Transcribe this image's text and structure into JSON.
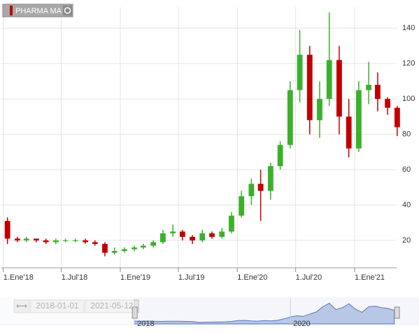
{
  "chart_data": {
    "type": "candlestick",
    "legend": "PHARMA MA",
    "up_color": "#3cb02c",
    "down_color": "#c00000",
    "x": [
      "2018-01-01",
      "2018-02-01",
      "2018-03-01",
      "2018-04-01",
      "2018-05-01",
      "2018-06-01",
      "2018-07-01",
      "2018-08-01",
      "2018-09-01",
      "2018-10-01",
      "2018-11-01",
      "2018-12-01",
      "2019-01-01",
      "2019-02-01",
      "2019-03-01",
      "2019-04-01",
      "2019-05-01",
      "2019-06-01",
      "2019-07-01",
      "2019-08-01",
      "2019-09-01",
      "2019-10-01",
      "2019-11-01",
      "2019-12-01",
      "2020-01-01",
      "2020-02-01",
      "2020-03-01",
      "2020-04-01",
      "2020-05-01",
      "2020-06-01",
      "2020-07-01",
      "2020-08-01",
      "2020-09-01",
      "2020-10-01",
      "2020-11-01",
      "2020-12-01",
      "2021-01-01",
      "2021-02-01",
      "2021-03-01",
      "2021-04-01",
      "2021-05-01"
    ],
    "open": [
      31,
      21,
      20,
      21,
      20,
      19,
      20,
      20,
      20,
      19,
      18,
      13,
      14,
      15,
      16,
      17,
      19,
      24,
      25,
      22,
      20,
      24,
      22,
      25,
      34,
      45,
      52,
      48,
      62,
      74,
      105,
      125,
      88,
      100,
      122,
      90,
      72,
      105,
      108,
      100,
      95
    ],
    "high": [
      33,
      22,
      22,
      21,
      21,
      21,
      21,
      21,
      21,
      20,
      19,
      16,
      16,
      17,
      18,
      20,
      26,
      29,
      26,
      23,
      26,
      25,
      27,
      36,
      48,
      55,
      60,
      64,
      76,
      110,
      139,
      130,
      110,
      149,
      130,
      100,
      110,
      121,
      115,
      101,
      96
    ],
    "low": [
      18,
      19,
      19,
      19,
      18,
      18,
      19,
      19,
      18,
      17,
      11,
      12,
      13,
      14,
      15,
      16,
      18,
      22,
      20,
      18,
      19,
      21,
      21,
      24,
      33,
      40,
      31,
      43,
      60,
      72,
      98,
      80,
      78,
      96,
      80,
      67,
      70,
      97,
      93,
      91,
      79
    ],
    "close": [
      21,
      20,
      21,
      20,
      19,
      20,
      20,
      20,
      19,
      18,
      13,
      14,
      15,
      16,
      17,
      19,
      24,
      25,
      22,
      20,
      24,
      22,
      25,
      34,
      45,
      52,
      48,
      62,
      74,
      105,
      125,
      88,
      100,
      122,
      90,
      72,
      105,
      108,
      100,
      95,
      84
    ],
    "xlim": [
      "2017-12-26",
      "2021-05-12"
    ],
    "xticks": [
      {
        "value": "2018-01-01",
        "label": "1.Ene'18"
      },
      {
        "value": "2018-07-01",
        "label": "1.Jul'18"
      },
      {
        "value": "2019-01-01",
        "label": "1.Ene'19"
      },
      {
        "value": "2019-07-01",
        "label": "1.Jul'19"
      },
      {
        "value": "2020-01-01",
        "label": "1.Ene'20"
      },
      {
        "value": "2020-07-01",
        "label": "1.Jul'20"
      },
      {
        "value": "2021-01-01",
        "label": "1.Ene'21"
      }
    ],
    "ylim": [
      4.5,
      152
    ],
    "yticks": [
      20,
      40,
      60,
      80,
      100,
      120,
      140
    ],
    "grid": true,
    "navigator": {
      "from": "2018-01-01",
      "to": "2021-05-12",
      "xlim": [
        "2016-04-12",
        "2021-05-12"
      ],
      "xticks": [
        {
          "value": "2018-01-01",
          "label": "2018"
        },
        {
          "value": "2020-01-01",
          "label": "2020"
        }
      ]
    }
  }
}
